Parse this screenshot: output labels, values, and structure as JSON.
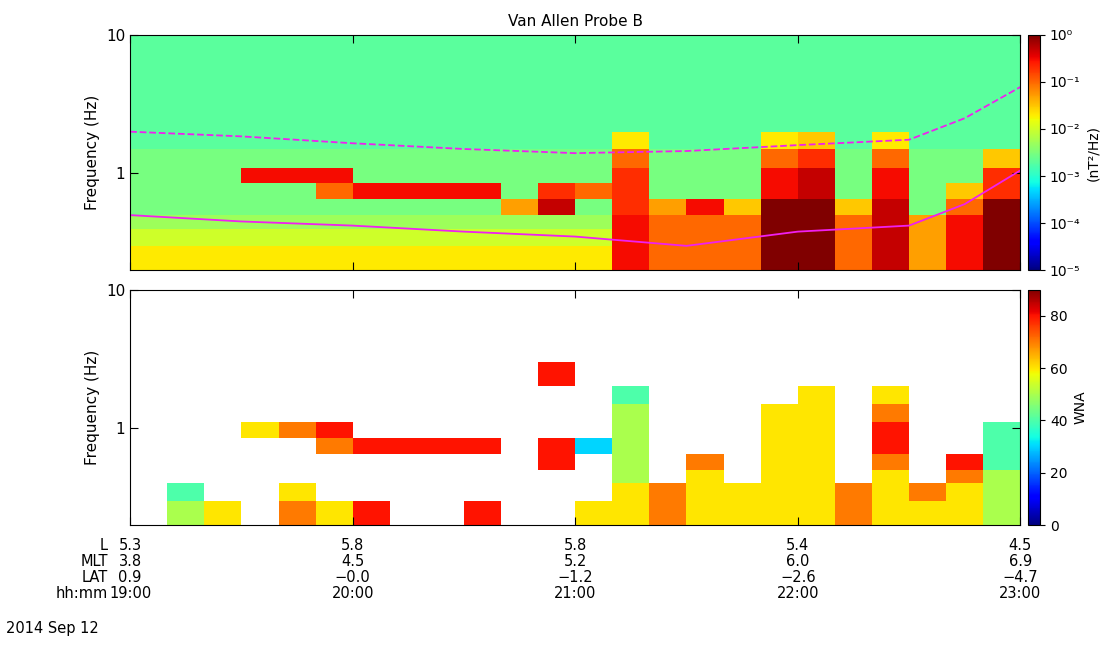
{
  "chart_data": [
    {
      "type": "heatmap",
      "title": "Van Allen Probe B",
      "y_label": "Frequency (Hz)",
      "log": "y",
      "tick_labels": "y",
      "xlim": [
        19,
        23
      ],
      "xticks": [
        19,
        20,
        21,
        22,
        23
      ],
      "ylim": [
        0.2,
        10
      ],
      "yticks": [
        1,
        10
      ],
      "x_edges": [
        19.0,
        19.1667,
        19.3333,
        19.5,
        19.6667,
        19.8333,
        20.0,
        20.1667,
        20.3333,
        20.5,
        20.6667,
        20.8333,
        21.0,
        21.1667,
        21.3333,
        21.5,
        21.6667,
        21.8333,
        22.0,
        22.1667,
        22.3333,
        22.5,
        22.6667,
        22.8333,
        23.0
      ],
      "y_edges": [
        0.2,
        0.3,
        0.4,
        0.5,
        0.65,
        0.85,
        1.1,
        1.5,
        2,
        3,
        5,
        10
      ],
      "cells": [
        [
          0.02,
          0.02,
          0.02,
          0.02,
          0.02,
          0.02,
          0.02,
          0.02,
          0.02,
          0.02,
          0.02,
          0.02,
          0.02,
          0.3,
          0.1,
          0.1,
          0.1,
          1.0,
          1.0,
          0.1,
          0.5,
          0.05,
          0.3,
          1.0
        ],
        [
          0.01,
          0.01,
          0.01,
          0.01,
          0.01,
          0.01,
          0.01,
          0.01,
          0.01,
          0.01,
          0.01,
          0.01,
          0.01,
          0.3,
          0.1,
          0.1,
          0.1,
          1.0,
          1.0,
          0.1,
          0.5,
          0.05,
          0.3,
          1.0
        ],
        [
          0.005,
          0.005,
          0.005,
          0.005,
          0.005,
          0.005,
          0.005,
          0.005,
          0.005,
          0.005,
          0.005,
          0.005,
          0.005,
          0.3,
          0.1,
          0.1,
          0.1,
          1.0,
          1.0,
          0.1,
          0.5,
          0.05,
          0.3,
          1.0
        ],
        [
          0.003,
          0.003,
          0.003,
          0.003,
          0.003,
          0.003,
          0.003,
          0.003,
          0.003,
          0.003,
          0.05,
          0.5,
          0.003,
          0.2,
          0.05,
          0.3,
          0.03,
          1.0,
          1.0,
          0.03,
          0.5,
          0.003,
          0.1,
          1.0
        ],
        [
          0.003,
          0.003,
          0.003,
          0.003,
          0.003,
          0.1,
          0.3,
          0.3,
          0.3,
          0.3,
          0.003,
          0.2,
          0.1,
          0.2,
          0.003,
          0.003,
          0.003,
          0.3,
          0.5,
          0.003,
          0.3,
          0.003,
          0.03,
          0.2
        ],
        [
          0.003,
          0.003,
          0.003,
          0.3,
          0.3,
          0.3,
          0.003,
          0.003,
          0.003,
          0.003,
          0.003,
          0.003,
          0.003,
          0.2,
          0.003,
          0.003,
          0.003,
          0.3,
          0.5,
          0.003,
          0.3,
          0.003,
          0.003,
          0.2
        ],
        [
          0.003,
          0.003,
          0.003,
          0.003,
          0.003,
          0.003,
          0.003,
          0.003,
          0.003,
          0.003,
          0.003,
          0.003,
          0.003,
          0.1,
          0.003,
          0.003,
          0.003,
          0.1,
          0.2,
          0.003,
          0.1,
          0.003,
          0.003,
          0.03
        ],
        [
          0.002,
          0.002,
          0.002,
          0.002,
          0.002,
          0.002,
          0.002,
          0.002,
          0.002,
          0.002,
          0.002,
          0.002,
          0.002,
          0.02,
          0.002,
          0.002,
          0.002,
          0.02,
          0.03,
          0.002,
          0.02,
          0.002,
          0.002,
          0.002
        ],
        [
          0.002,
          0.002,
          0.002,
          0.002,
          0.002,
          0.002,
          0.002,
          0.002,
          0.002,
          0.002,
          0.002,
          0.002,
          0.002,
          0.002,
          0.002,
          0.002,
          0.002,
          0.002,
          0.002,
          0.002,
          0.002,
          0.002,
          0.002,
          0.002
        ],
        [
          0.002,
          0.002,
          0.002,
          0.002,
          0.002,
          0.002,
          0.002,
          0.002,
          0.002,
          0.002,
          0.002,
          0.002,
          0.002,
          0.002,
          0.002,
          0.002,
          0.002,
          0.002,
          0.002,
          0.002,
          0.002,
          0.002,
          0.002,
          0.002
        ],
        [
          0.002,
          0.002,
          0.002,
          0.002,
          0.002,
          0.002,
          0.002,
          0.002,
          0.002,
          0.002,
          0.002,
          0.002,
          0.002,
          0.002,
          0.002,
          0.002,
          0.002,
          0.002,
          0.002,
          0.002,
          0.002,
          0.002,
          0.002,
          0.002
        ]
      ],
      "colorbar": {
        "label": "(nT²/Hz)",
        "log": true,
        "range": [
          1e-05,
          1
        ],
        "ticks": [
          {
            "value": 1e-05,
            "label": "10⁻⁵"
          },
          {
            "value": 0.0001,
            "label": "10⁻⁴"
          },
          {
            "value": 0.001,
            "label": "10⁻³"
          },
          {
            "value": 0.01,
            "label": "10⁻²"
          },
          {
            "value": 0.1,
            "label": "10⁻¹"
          },
          {
            "value": 1,
            "label": "10⁰"
          }
        ]
      },
      "lines": [
        {
          "x": [
            19,
            19.5,
            20,
            20.5,
            21,
            21.5,
            22,
            22.5,
            22.75,
            23
          ],
          "values": [
            0.5,
            0.45,
            0.42,
            0.38,
            0.35,
            0.3,
            0.38,
            0.42,
            0.6,
            1.05
          ],
          "color": "#f020f0",
          "line_style": "solid"
        },
        {
          "x": [
            19,
            19.5,
            20,
            20.5,
            21,
            21.5,
            22,
            22.5,
            22.75,
            23
          ],
          "values": [
            2.0,
            1.85,
            1.65,
            1.5,
            1.4,
            1.45,
            1.6,
            1.75,
            2.5,
            4.2
          ],
          "color": "#f020f0",
          "line_style": "dashed"
        }
      ]
    },
    {
      "type": "heatmap",
      "y_label": "Frequency (Hz)",
      "x_label": "hh:mm",
      "log": "y",
      "xlim": [
        19,
        23
      ],
      "xticks": [
        {
          "value": 19,
          "label": "19:00"
        },
        {
          "value": 20,
          "label": "20:00"
        },
        {
          "value": 21,
          "label": "21:00"
        },
        {
          "value": 22,
          "label": "22:00"
        },
        {
          "value": 23,
          "label": "23:00"
        }
      ],
      "ylim": [
        0.2,
        10
      ],
      "yticks": [
        1,
        10
      ],
      "x_edges": [
        19.0,
        19.1667,
        19.3333,
        19.5,
        19.6667,
        19.8333,
        20.0,
        20.1667,
        20.3333,
        20.5,
        20.6667,
        20.8333,
        21.0,
        21.1667,
        21.3333,
        21.5,
        21.6667,
        21.8333,
        22.0,
        22.1667,
        22.3333,
        22.5,
        22.6667,
        22.8333,
        23.0
      ],
      "y_edges": [
        0.2,
        0.3,
        0.4,
        0.5,
        0.65,
        0.85,
        1.1,
        1.5,
        2,
        3,
        5,
        10
      ],
      "cells": [
        [
          null,
          50,
          60,
          null,
          70,
          60,
          80,
          null,
          null,
          80,
          null,
          null,
          60,
          60,
          70,
          60,
          60,
          60,
          60,
          70,
          60,
          60,
          60,
          50
        ],
        [
          null,
          40,
          null,
          null,
          60,
          null,
          null,
          null,
          null,
          null,
          null,
          null,
          null,
          60,
          70,
          60,
          60,
          60,
          60,
          70,
          60,
          70,
          60,
          50
        ],
        [
          null,
          null,
          null,
          null,
          null,
          null,
          null,
          null,
          null,
          null,
          null,
          null,
          null,
          50,
          null,
          60,
          null,
          60,
          60,
          null,
          60,
          null,
          70,
          50
        ],
        [
          null,
          null,
          null,
          null,
          null,
          null,
          null,
          null,
          null,
          null,
          null,
          80,
          null,
          50,
          null,
          70,
          null,
          60,
          60,
          null,
          70,
          null,
          80,
          40
        ],
        [
          null,
          null,
          null,
          null,
          null,
          70,
          80,
          80,
          80,
          80,
          null,
          80,
          30,
          50,
          null,
          null,
          null,
          60,
          60,
          null,
          80,
          null,
          null,
          40
        ],
        [
          null,
          null,
          null,
          60,
          70,
          80,
          null,
          null,
          null,
          null,
          null,
          null,
          null,
          50,
          null,
          null,
          null,
          60,
          60,
          null,
          80,
          null,
          null,
          40
        ],
        [
          null,
          null,
          null,
          null,
          null,
          null,
          null,
          null,
          null,
          null,
          null,
          null,
          null,
          50,
          null,
          null,
          null,
          60,
          60,
          null,
          70,
          null,
          null,
          null
        ],
        [
          null,
          null,
          null,
          null,
          null,
          null,
          null,
          null,
          null,
          null,
          null,
          null,
          null,
          40,
          null,
          null,
          null,
          null,
          60,
          null,
          60,
          null,
          null,
          null
        ],
        [
          null,
          null,
          null,
          null,
          null,
          null,
          null,
          null,
          null,
          null,
          null,
          80,
          null,
          null,
          null,
          null,
          null,
          null,
          null,
          null,
          null,
          null,
          null,
          null
        ],
        [
          null,
          null,
          null,
          null,
          null,
          null,
          null,
          null,
          null,
          null,
          null,
          null,
          null,
          null,
          null,
          null,
          null,
          null,
          null,
          null,
          null,
          null,
          null,
          null
        ],
        [
          null,
          null,
          null,
          null,
          null,
          null,
          null,
          null,
          null,
          null,
          null,
          null,
          null,
          null,
          null,
          null,
          null,
          null,
          null,
          null,
          null,
          null,
          null,
          null
        ]
      ],
      "colorbar": {
        "label": "WNA",
        "range": [
          0,
          90
        ],
        "ticks": [
          0,
          20,
          40,
          60,
          80
        ]
      },
      "ephemeris": [
        {
          "name": "L",
          "values": [
            "5.3",
            "5.8",
            "5.8",
            "5.4",
            "4.5"
          ]
        },
        {
          "name": "MLT",
          "values": [
            "3.8",
            "4.5",
            "5.2",
            "6.0",
            "6.9"
          ]
        },
        {
          "name": "LAT",
          "values": [
            "0.9",
            "−0.0",
            "−1.2",
            "−2.6",
            "−4.7"
          ]
        }
      ],
      "date": "2014 Sep 12"
    }
  ]
}
